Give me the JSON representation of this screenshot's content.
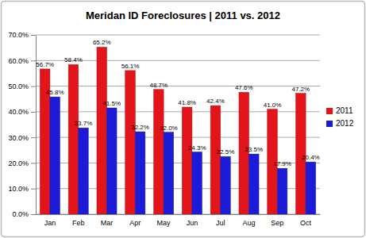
{
  "chart_data": {
    "type": "bar",
    "title": "Meridan ID Foreclosures | 2011 vs. 2012",
    "categories": [
      "Jan",
      "Feb",
      "Mar",
      "Apr",
      "May",
      "Jun",
      "Jul",
      "Aug",
      "Sep",
      "Oct"
    ],
    "series": [
      {
        "name": "2011",
        "color": "#e3151a",
        "values": [
          56.7,
          58.4,
          65.2,
          56.1,
          48.7,
          41.8,
          42.4,
          47.6,
          41.0,
          47.2
        ],
        "value_labels": [
          "56.7%",
          "58.4%",
          "65.2%",
          "56.1%",
          "48.7%",
          "41.8%",
          "42.4%",
          "47.6%",
          "41.0%",
          "47.2%"
        ]
      },
      {
        "name": "2012",
        "color": "#1c1cd8",
        "values": [
          45.8,
          33.7,
          41.5,
          32.2,
          32.0,
          24.3,
          22.5,
          23.5,
          17.9,
          20.4
        ],
        "value_labels": [
          "45.8%",
          "33.7%",
          "41.5%",
          "32.2%",
          "32.0%",
          "24.3%",
          "22.5%",
          "23.5%",
          "17.9%",
          "20.4%"
        ]
      }
    ],
    "ylim": [
      0,
      70
    ],
    "yticks": [
      {
        "value": 0,
        "label": "0.0%"
      },
      {
        "value": 10,
        "label": "10.0%"
      },
      {
        "value": 20,
        "label": "20.0%"
      },
      {
        "value": 30,
        "label": "30.0%"
      },
      {
        "value": 40,
        "label": "40.0%"
      },
      {
        "value": 50,
        "label": "50.0%"
      },
      {
        "value": 60,
        "label": "60.0%"
      },
      {
        "value": 70,
        "label": "70.0%"
      }
    ],
    "grid": true,
    "legend": "right",
    "data_labels": true
  }
}
